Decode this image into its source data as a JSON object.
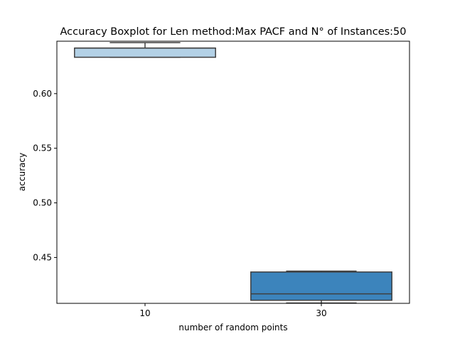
{
  "chart_data": {
    "type": "boxplot",
    "title": "Accuracy Boxplot for Len method:Max PACF and N° of Instances:50",
    "xlabel": "number of random points",
    "ylabel": "accuracy",
    "categories": [
      "10",
      "30"
    ],
    "ylim": [
      0.408,
      0.648
    ],
    "yticks": [
      0.45,
      0.5,
      0.55,
      0.6
    ],
    "ytick_labels": [
      "0.45",
      "0.50",
      "0.55",
      "0.60"
    ],
    "boxes": [
      {
        "category": "10",
        "whisker_low": 0.6333,
        "q1": 0.6333,
        "median": 0.6417,
        "q3": 0.6417,
        "whisker_high": 0.6467,
        "color": "#b3d1e6"
      },
      {
        "category": "30",
        "whisker_low": 0.4083,
        "q1": 0.4108,
        "median": 0.4167,
        "q3": 0.4367,
        "whisker_high": 0.4375,
        "color": "#3c84bc"
      }
    ],
    "grid": false,
    "legend": "none"
  }
}
